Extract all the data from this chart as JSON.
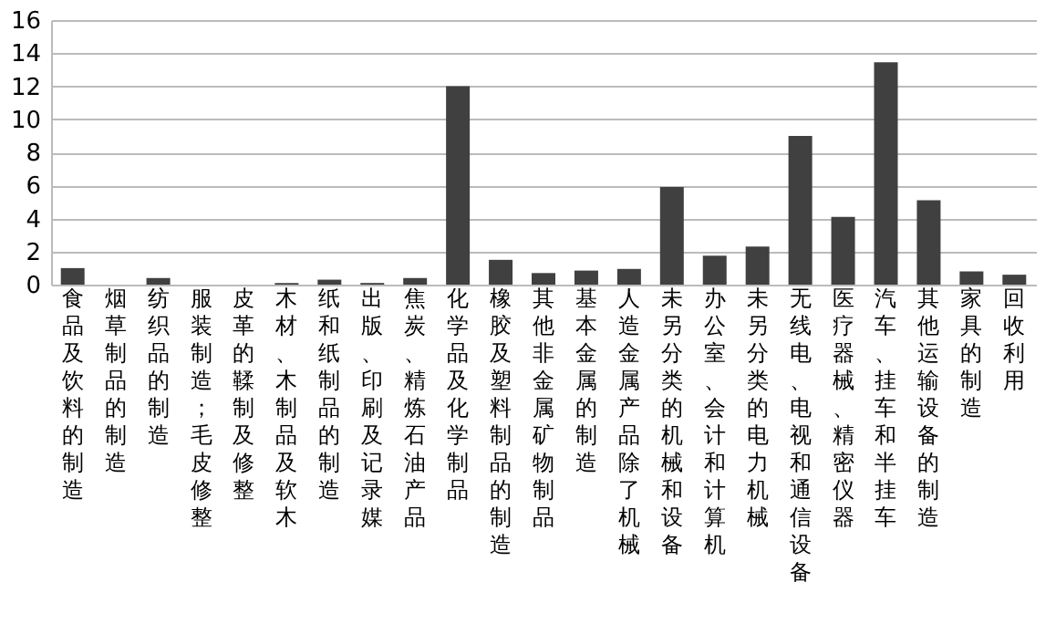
{
  "chart_data": {
    "type": "bar",
    "categories": [
      "食品及饮料的制造",
      "烟草制品的制造",
      "纺织品的制造",
      "服装制造；毛皮修整",
      "皮革的鞣制及修整",
      "木材、木制品及软木",
      "纸和纸制品的制造",
      "出版、印刷及记录媒",
      "焦炭、精炼石油产品",
      "化学品及化学制品",
      "橡胶及塑料制品的制造",
      "其他非金属矿物制品",
      "基本金属的制造",
      "人造金属产品除了机械",
      "未另分类的机械和设备",
      "办公室、会计和计算机",
      "未另分类的电力机械",
      "无线电、电视和通信设备",
      "医疗器械、精密仪器",
      "汽车、挂车和半挂车",
      "其他运输设备的制造",
      "家具的制造",
      "回收利用"
    ],
    "values": [
      1.0,
      0,
      0.4,
      0,
      0,
      0.1,
      0.3,
      0.1,
      0.4,
      12,
      1.5,
      0.7,
      0.85,
      0.95,
      5.9,
      1.75,
      2.3,
      9.0,
      4.1,
      13.45,
      5.1,
      0.8,
      0.6
    ],
    "color": "#404040",
    "ylim": [
      0,
      16
    ],
    "yticks": [
      0,
      2,
      4,
      6,
      8,
      10,
      12,
      14,
      16
    ],
    "grid": "y"
  }
}
